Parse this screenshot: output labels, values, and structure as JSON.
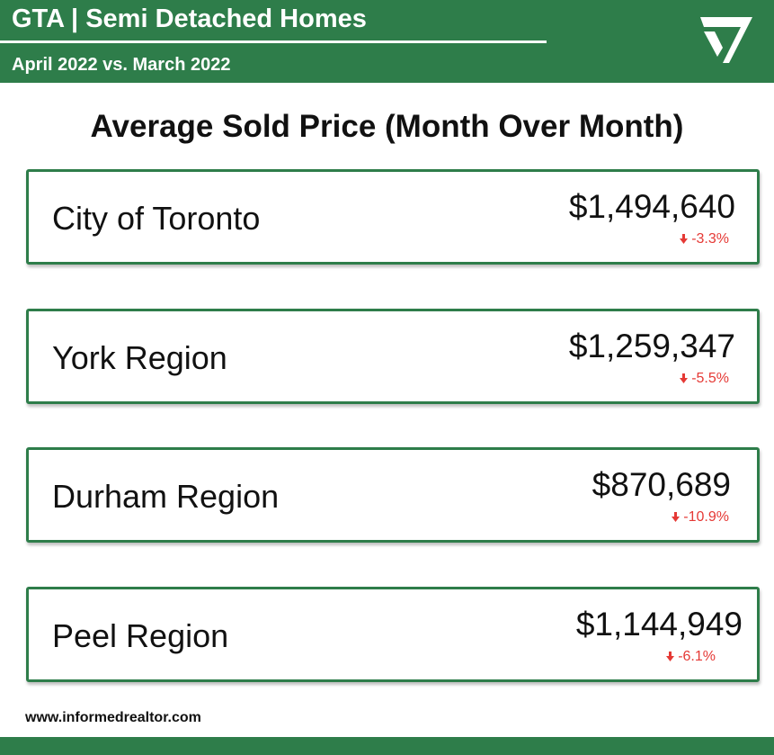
{
  "header": {
    "title": "GTA | Semi Detached Homes",
    "subtitle": "April 2022 vs. March 2022",
    "logo_icon": "checkmark-triangle-icon"
  },
  "section_title": "Average Sold Price (Month Over Month)",
  "regions": [
    {
      "name": "City of Toronto",
      "price": "$1,494,640",
      "change": "-3.3%"
    },
    {
      "name": "York Region",
      "price": "$1,259,347",
      "change": "-5.5%"
    },
    {
      "name": "Durham Region",
      "price": "$870,689",
      "change": "-10.9%"
    },
    {
      "name": "Peel Region",
      "price": "$1,144,949",
      "change": "-6.1%"
    }
  ],
  "footer": {
    "website": "www.informedrealtor.com"
  },
  "colors": {
    "brand_green": "#2e7d4a",
    "decrease_red": "#e53935",
    "text": "#111111",
    "background": "#ffffff"
  }
}
